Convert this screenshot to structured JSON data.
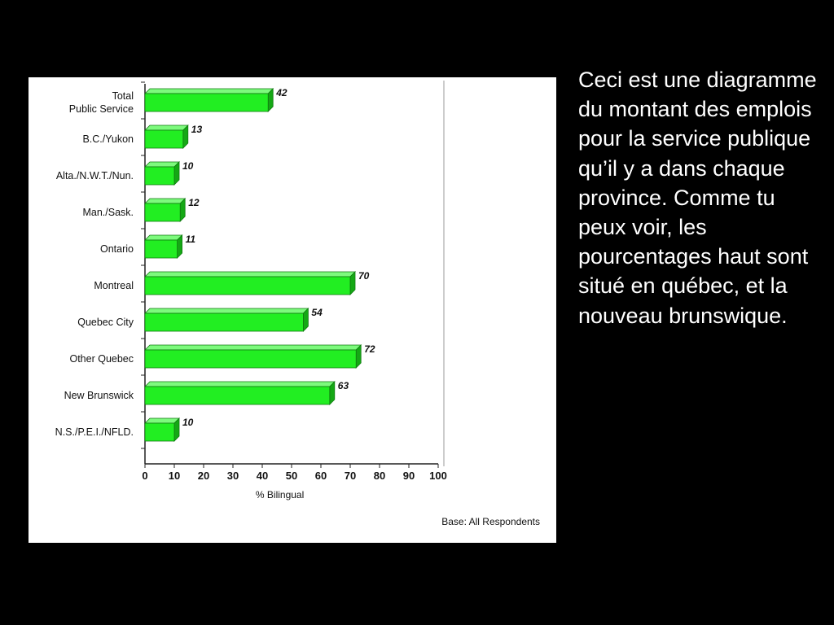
{
  "caption": "Ceci est une diagramme du montant des emplois pour la service publique qu’il y a dans chaque province. Comme tu peux voir, les pourcentages haut sont situé en québec, et la nouveau brunswique.",
  "chart_data": {
    "type": "bar",
    "orientation": "horizontal",
    "categories": [
      [
        "Total",
        "Public Service"
      ],
      [
        "B.C./Yukon"
      ],
      [
        "Alta./N.W.T./Nun."
      ],
      [
        "Man./Sask."
      ],
      [
        "Ontario"
      ],
      [
        "Montreal"
      ],
      [
        "Quebec City"
      ],
      [
        "Other Quebec"
      ],
      [
        "New Brunswick"
      ],
      [
        "N.S./P.E.I./NFLD."
      ]
    ],
    "values": [
      42,
      13,
      10,
      12,
      11,
      70,
      54,
      72,
      63,
      10
    ],
    "xlabel": "% Bilingual",
    "ylabel": "",
    "xlim": [
      0,
      100
    ],
    "xticks": [
      0,
      10,
      20,
      30,
      40,
      50,
      60,
      70,
      80,
      90,
      100
    ],
    "grid": false,
    "bar_color": "#22ee22",
    "bar_edge_color": "#0f7a0f",
    "note": "Base:  All Respondents"
  }
}
